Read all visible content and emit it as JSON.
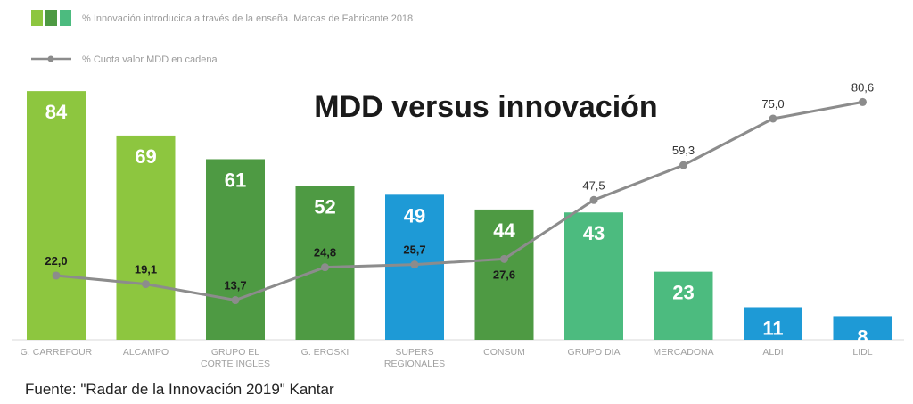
{
  "chart_data": {
    "type": "bar",
    "title": "MDD versus innovación",
    "xlabel": "",
    "ylabel": "",
    "ylim": [
      0,
      100
    ],
    "grid": false,
    "legend_position": "top-left",
    "categories": [
      [
        "G. CARREFOUR"
      ],
      [
        "ALCAMPO"
      ],
      [
        "GRUPO EL",
        "CORTE INGLES"
      ],
      [
        "G. EROSKI"
      ],
      [
        "SUPERS",
        "REGIONALES"
      ],
      [
        "CONSUM"
      ],
      [
        "GRUPO DIA"
      ],
      [
        "MERCADONA"
      ],
      [
        "ALDI"
      ],
      [
        "LIDL"
      ]
    ],
    "series": [
      {
        "name": "% Innovación introducida a través de la enseña. Marcas de Fabricante 2018",
        "type": "bar",
        "values": [
          84,
          69,
          61,
          52,
          49,
          44,
          43,
          23,
          11,
          8
        ],
        "labels": [
          "84",
          "69",
          "61",
          "52",
          "49",
          "44",
          "43",
          "23",
          "11",
          "8"
        ],
        "colors": [
          "#8dc63f",
          "#8dc63f",
          "#4e9a43",
          "#4e9a43",
          "#1e9ad6",
          "#4e9a43",
          "#4cbb7f",
          "#4cbb7f",
          "#1e9ad6",
          "#1e9ad6"
        ]
      },
      {
        "name": "% Cuota valor MDD en cadena",
        "type": "line",
        "values": [
          22.0,
          19.1,
          13.7,
          24.8,
          25.7,
          27.6,
          47.5,
          59.3,
          75.0,
          80.6
        ],
        "labels": [
          "22,0",
          "19,1",
          "13,7",
          "24,8",
          "25,7",
          "27,6",
          "47,5",
          "59,3",
          "75,0",
          "80,6"
        ],
        "label_positions": [
          "above",
          "above",
          "above",
          "above",
          "above",
          "below",
          "above",
          "above",
          "above",
          "above"
        ],
        "color": "#8c8c8c"
      }
    ],
    "legend": [
      {
        "label": "% Innovación introducida a través de la enseña.  Marcas de Fabricante 2018",
        "swatch_colors": [
          "#8dc63f",
          "#4e9a43",
          "#4cbb7f"
        ]
      },
      {
        "label": "% Cuota valor MDD en cadena",
        "swatch_color": "#8c8c8c"
      }
    ],
    "annotations": [
      "Fuente: \"Radar de la Innovación 2019\" Kantar"
    ]
  },
  "source": "Fuente: \"Radar de la Innovación 2019\" Kantar"
}
